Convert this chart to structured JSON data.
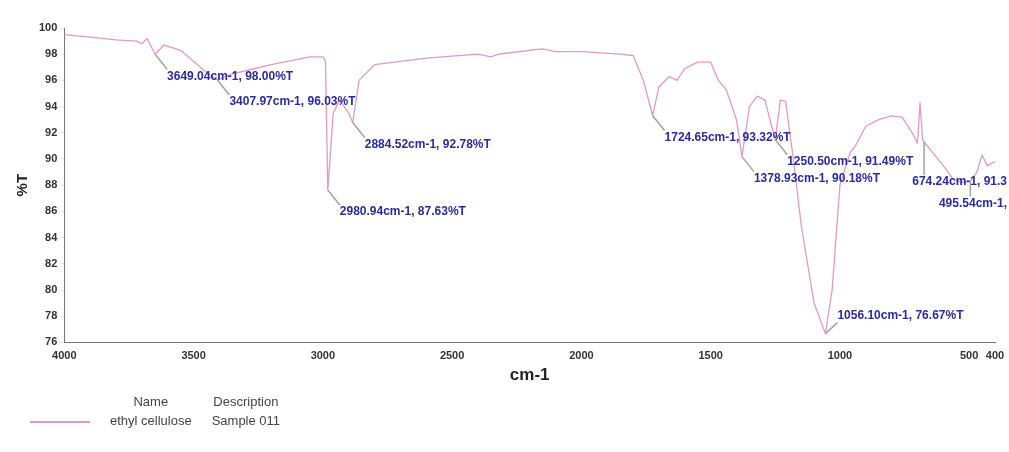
{
  "chart_data": {
    "type": "line",
    "xlabel": "cm-1",
    "ylabel": "%T",
    "legend": "bottom left",
    "legend_title": "Name",
    "marker": "none",
    "line_style": "solid",
    "grid": false,
    "xlim": [
      4000,
      400
    ],
    "xticks": [
      4000,
      3500,
      3000,
      2500,
      2000,
      1500,
      1000,
      500,
      400
    ],
    "ylim": [
      76,
      100
    ],
    "yticks": [
      76,
      78,
      80,
      82,
      84,
      86,
      88,
      90,
      92,
      94,
      96,
      98,
      100
    ],
    "series": [
      {
        "name": "ethyl cellulose",
        "color": "#e39ac0",
        "x": [
          4000,
          3900,
          3800,
          3720,
          3700,
          3680,
          3649.04,
          3615,
          3550,
          3450,
          3407.97,
          3350,
          3200,
          3050,
          3000,
          2990,
          2980.94,
          2960,
          2935,
          2900,
          2884.52,
          2860,
          2800,
          2600,
          2400,
          2350,
          2320,
          2200,
          2150,
          2100,
          2000,
          1850,
          1800,
          1760,
          1724.65,
          1700,
          1660,
          1630,
          1600,
          1550,
          1500,
          1470,
          1440,
          1400,
          1378.93,
          1350,
          1320,
          1290,
          1250.5,
          1230,
          1210,
          1180,
          1150,
          1100,
          1056.1,
          1030,
          1000,
          960,
          940,
          900,
          850,
          800,
          760,
          720,
          700,
          690,
          680,
          674.24,
          600,
          560,
          520,
          495.54,
          470,
          450,
          430,
          400
        ],
        "values": [
          99.5,
          99.3,
          99.1,
          99.0,
          98.8,
          99.2,
          98.0,
          98.7,
          98.3,
          96.6,
          96.03,
          96.5,
          97.2,
          97.8,
          97.8,
          97.5,
          87.63,
          93.5,
          94.5,
          93.5,
          92.78,
          96.0,
          97.2,
          97.7,
          98.0,
          97.8,
          98.0,
          98.3,
          98.4,
          98.2,
          98.2,
          98.0,
          97.9,
          96.0,
          93.32,
          95.5,
          96.3,
          96.0,
          96.9,
          97.4,
          97.4,
          96.0,
          95.3,
          93.0,
          90.18,
          94.0,
          94.8,
          94.5,
          91.49,
          94.5,
          94.4,
          90.0,
          85.0,
          79.0,
          76.67,
          80.0,
          88.0,
          90.5,
          91.0,
          92.5,
          93.0,
          93.3,
          93.2,
          92.0,
          91.2,
          94.3,
          91.5,
          91.3,
          89.5,
          88.4,
          88.2,
          88.3,
          89.0,
          90.3,
          89.5,
          89.8
        ]
      }
    ],
    "annotations": [
      {
        "text": "3649.04cm-1, 98.00%T",
        "x": 3649.04,
        "y": 98.0
      },
      {
        "text": "3407.97cm-1, 96.03%T",
        "x": 3407.97,
        "y": 96.03
      },
      {
        "text": "2980.94cm-1, 87.63%T",
        "x": 2980.94,
        "y": 87.63
      },
      {
        "text": "2884.52cm-1, 92.78%T",
        "x": 2884.52,
        "y": 92.78
      },
      {
        "text": "1724.65cm-1, 93.32%T",
        "x": 1724.65,
        "y": 93.32
      },
      {
        "text": "1378.93cm-1, 90.18%T",
        "x": 1378.93,
        "y": 90.18
      },
      {
        "text": "1250.50cm-1, 91.49%T",
        "x": 1250.5,
        "y": 91.49
      },
      {
        "text": "1056.10cm-1, 76.67%T",
        "x": 1056.1,
        "y": 76.67
      },
      {
        "text": "674.24cm-1, 91.3",
        "x": 674.24,
        "y": 91.3
      },
      {
        "text": "495.54cm-1,",
        "x": 495.54,
        "y": 88.3
      },
      "Description",
      "Sample 011"
    ]
  }
}
